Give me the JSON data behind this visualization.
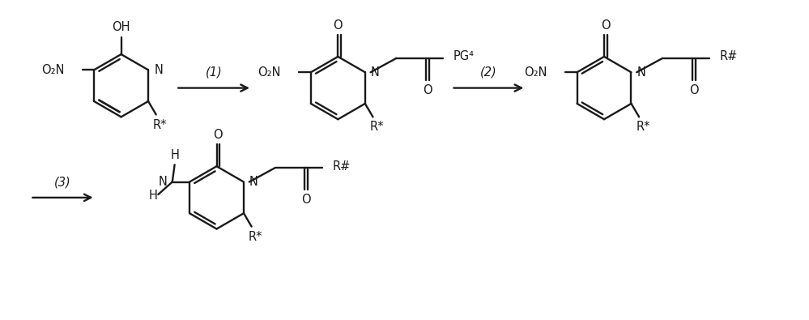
{
  "bg_color": "#ffffff",
  "line_color": "#1a1a1a",
  "line_width": 1.7,
  "font_size": 10.5,
  "figsize": [
    9.99,
    3.95
  ],
  "dpi": 100,
  "xlim": [
    0,
    10
  ],
  "ylim": [
    0,
    4
  ]
}
